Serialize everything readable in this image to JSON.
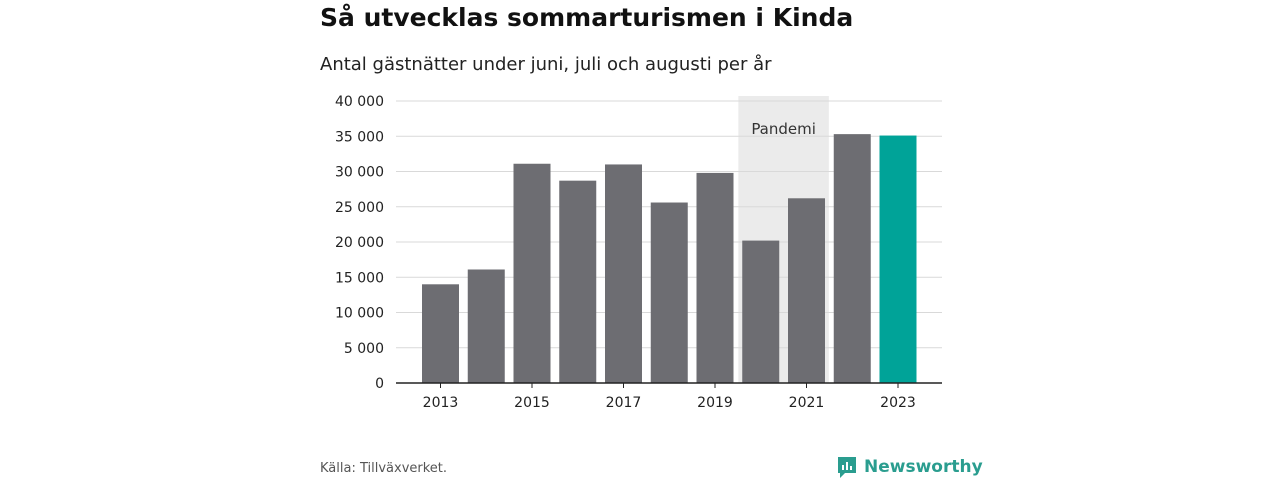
{
  "title": "Så utvecklas sommarturismen i Kinda",
  "subtitle": "Antal gästnätter under juni, juli och augusti per år",
  "source": "Källa: Tillväxverket.",
  "brand": {
    "name": "Newsworthy",
    "icon": "newsworthy-logo-icon"
  },
  "colors": {
    "bar": "#6d6d72",
    "highlight": "#00a398",
    "shade": "#ebebeb",
    "grid": "#d9d9d9",
    "axis": "#222222",
    "brand": "#2a9d8f"
  },
  "chart_data": {
    "type": "bar",
    "categories": [
      "2013",
      "2014",
      "2015",
      "2016",
      "2017",
      "2018",
      "2019",
      "2020",
      "2021",
      "2022",
      "2023"
    ],
    "values": [
      14000,
      16100,
      31100,
      28700,
      31000,
      25600,
      29800,
      20200,
      26200,
      35300,
      35100
    ],
    "highlight_index": 10,
    "x_tick_labels": [
      "2013",
      "2015",
      "2017",
      "2019",
      "2021",
      "2023"
    ],
    "y_ticks": [
      0,
      5000,
      10000,
      15000,
      20000,
      25000,
      30000,
      35000,
      40000
    ],
    "y_tick_labels": [
      "0",
      "5 000",
      "10 000",
      "15 000",
      "20 000",
      "25 000",
      "30 000",
      "35 000",
      "40 000"
    ],
    "ylim": [
      0,
      40000
    ],
    "annotation": {
      "label": "Pandemi",
      "from": "2020",
      "to": "2021"
    },
    "grid": true,
    "xlabel": "",
    "ylabel": ""
  }
}
